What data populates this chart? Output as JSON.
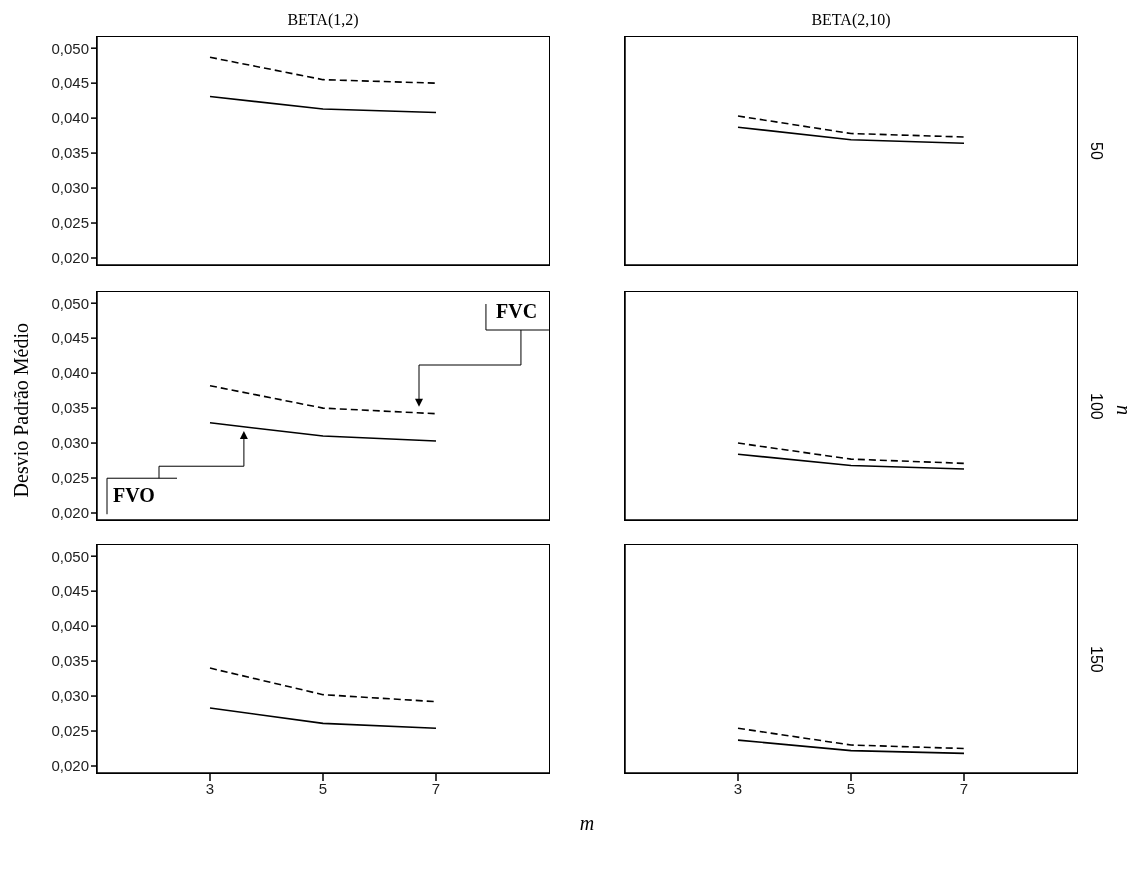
{
  "chart_data": [
    {
      "type": "line",
      "title": "BETA(1,2)",
      "x": [
        3,
        5,
        7
      ],
      "xlim": [
        1,
        9
      ],
      "ylim": [
        0.019,
        0.0516
      ],
      "yticks": [
        {
          "value": 0.02,
          "label": "0,020"
        },
        {
          "value": 0.025,
          "label": "0,025"
        },
        {
          "value": 0.03,
          "label": "0,030"
        },
        {
          "value": 0.035,
          "label": "0,035"
        },
        {
          "value": 0.04,
          "label": "0,040"
        },
        {
          "value": 0.045,
          "label": "0,045"
        },
        {
          "value": 0.05,
          "label": "0,050"
        }
      ],
      "tick_labels": "y",
      "marker": "none",
      "series": [
        {
          "color": "#000000",
          "line_style": "solid",
          "values": [
            0.0431,
            0.0413,
            0.0408
          ]
        },
        {
          "color": "#000000",
          "line_style": "dashed",
          "values": [
            0.0487,
            0.0455,
            0.045
          ]
        }
      ]
    },
    {
      "type": "line",
      "title": "BETA(2,10)",
      "x": [
        3,
        5,
        7
      ],
      "xlim": [
        1,
        9
      ],
      "ylim": [
        0.019,
        0.0516
      ],
      "tick_labels": false,
      "marker": "none",
      "annotations": [
        "50"
      ],
      "series": [
        {
          "color": "#000000",
          "line_style": "solid",
          "values": [
            0.0387,
            0.0369,
            0.0364
          ]
        },
        {
          "color": "#000000",
          "line_style": "dashed",
          "values": [
            0.0403,
            0.0378,
            0.0373
          ]
        }
      ]
    },
    {
      "type": "line",
      "ylabel": "Desvio Padrão Médio",
      "x": [
        3,
        5,
        7
      ],
      "xlim": [
        1,
        9
      ],
      "ylim": [
        0.019,
        0.0516
      ],
      "yticks": [
        {
          "value": 0.02,
          "label": "0,020"
        },
        {
          "value": 0.025,
          "label": "0,025"
        },
        {
          "value": 0.03,
          "label": "0,030"
        },
        {
          "value": 0.035,
          "label": "0,035"
        },
        {
          "value": 0.04,
          "label": "0,040"
        },
        {
          "value": 0.045,
          "label": "0,045"
        },
        {
          "value": 0.05,
          "label": "0,050"
        }
      ],
      "tick_labels": "y",
      "marker": "none",
      "series": [
        {
          "name": "FVO",
          "color": "#000000",
          "line_style": "solid",
          "values": [
            0.0329,
            0.031,
            0.0303
          ]
        },
        {
          "name": "FVC",
          "color": "#000000",
          "line_style": "dashed",
          "values": [
            0.0382,
            0.035,
            0.0342
          ]
        }
      ]
    },
    {
      "type": "line",
      "y2label": "n",
      "annotations": [
        "100"
      ],
      "x": [
        3,
        5,
        7
      ],
      "xlim": [
        1,
        9
      ],
      "ylim": [
        0.019,
        0.0516
      ],
      "tick_labels": false,
      "marker": "none",
      "series": [
        {
          "color": "#000000",
          "line_style": "solid",
          "values": [
            0.0284,
            0.0268,
            0.0263
          ]
        },
        {
          "color": "#000000",
          "line_style": "dashed",
          "values": [
            0.03,
            0.0277,
            0.0271
          ]
        }
      ]
    },
    {
      "type": "line",
      "xlabel": "m",
      "x": [
        3,
        5,
        7
      ],
      "xlim": [
        1,
        9
      ],
      "xticks": [
        3,
        5,
        7
      ],
      "ylim": [
        0.019,
        0.0516
      ],
      "yticks": [
        {
          "value": 0.02,
          "label": "0,020"
        },
        {
          "value": 0.025,
          "label": "0,025"
        },
        {
          "value": 0.03,
          "label": "0,030"
        },
        {
          "value": 0.035,
          "label": "0,035"
        },
        {
          "value": 0.04,
          "label": "0,040"
        },
        {
          "value": 0.045,
          "label": "0,045"
        },
        {
          "value": 0.05,
          "label": "0,050"
        }
      ],
      "marker": "none",
      "series": [
        {
          "color": "#000000",
          "line_style": "solid",
          "values": [
            0.0283,
            0.0261,
            0.0254
          ]
        },
        {
          "color": "#000000",
          "line_style": "dashed",
          "values": [
            0.034,
            0.0302,
            0.0292
          ]
        }
      ]
    },
    {
      "type": "line",
      "annotations": [
        "150"
      ],
      "x": [
        3,
        5,
        7
      ],
      "xlim": [
        1,
        9
      ],
      "xticks": [
        3,
        5,
        7
      ],
      "ylim": [
        0.019,
        0.0516
      ],
      "tick_labels": "x",
      "marker": "none",
      "series": [
        {
          "color": "#000000",
          "line_style": "solid",
          "values": [
            0.0237,
            0.0222,
            0.0218
          ]
        },
        {
          "color": "#000000",
          "line_style": "dashed",
          "values": [
            0.0254,
            0.023,
            0.0225
          ]
        }
      ]
    }
  ]
}
